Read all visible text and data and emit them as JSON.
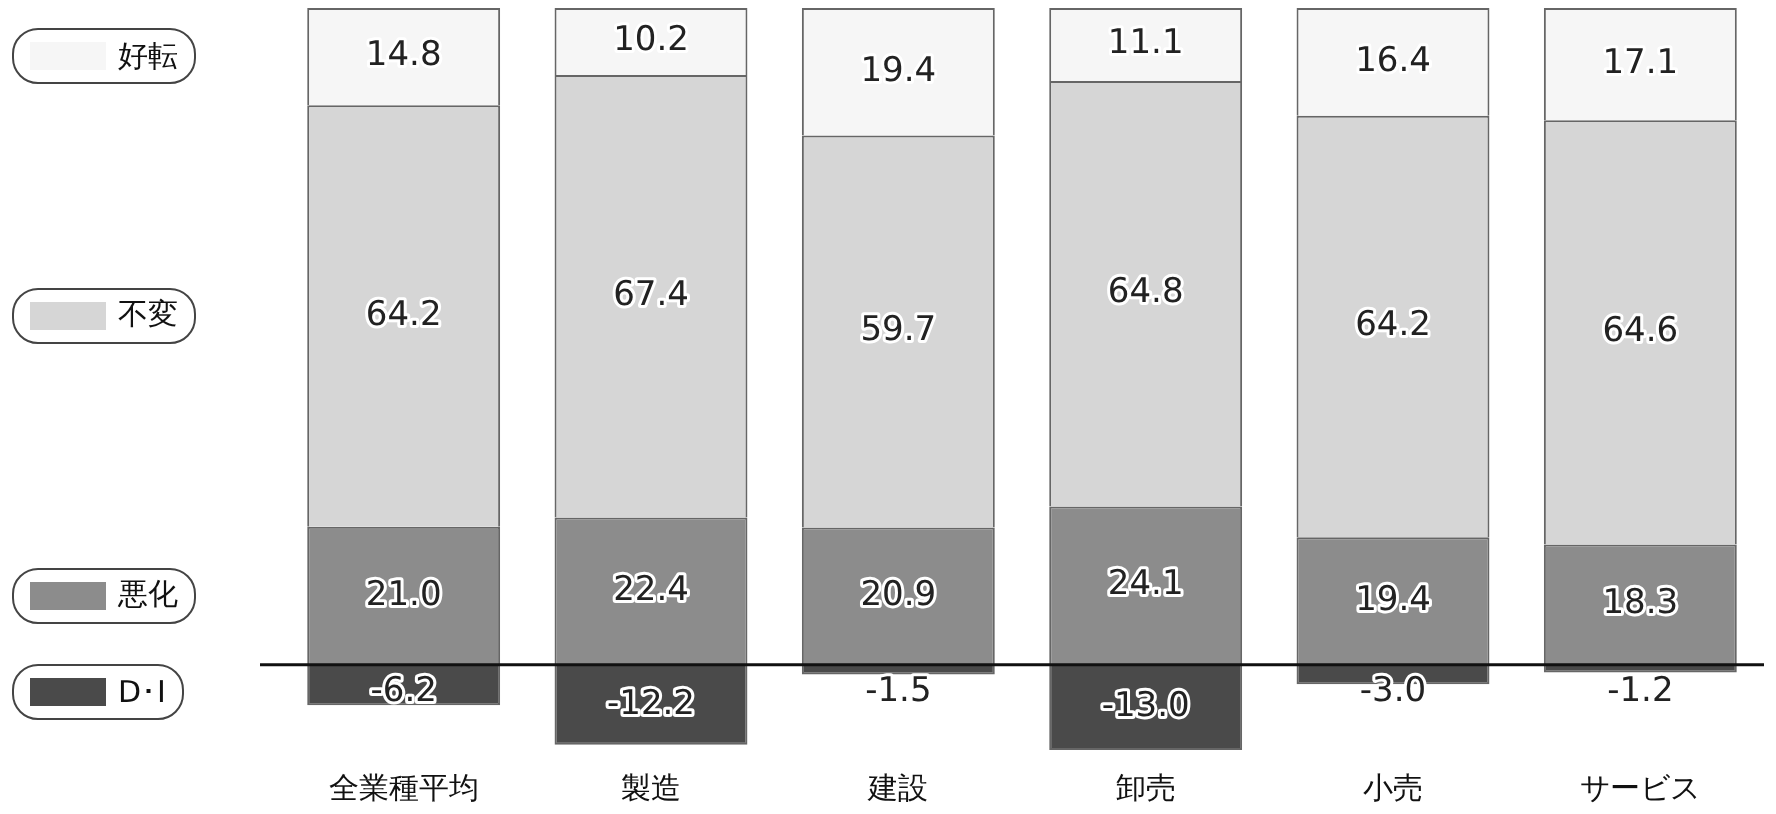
{
  "chart_data": {
    "type": "bar",
    "stacked": true,
    "categories": [
      "全業種平均",
      "製造",
      "建設",
      "卸売",
      "小売",
      "サービス"
    ],
    "series": [
      {
        "name": "悪化",
        "color": "#8c8c8c",
        "values": [
          21.0,
          22.4,
          20.9,
          24.1,
          19.4,
          18.3
        ],
        "value_labels": [
          "21.0",
          "22.4",
          "20.9",
          "24.1",
          "19.4",
          "18.3"
        ]
      },
      {
        "name": "不変",
        "color": "#d6d6d6",
        "values": [
          64.2,
          67.4,
          59.7,
          64.8,
          64.2,
          64.6
        ],
        "value_labels": [
          "64.2",
          "67.4",
          "59.7",
          "64.8",
          "64.2",
          "64.6"
        ]
      },
      {
        "name": "好転",
        "color": "#f6f6f6",
        "values": [
          14.8,
          10.2,
          19.4,
          11.1,
          16.4,
          17.1
        ],
        "value_labels": [
          "14.8",
          "10.2",
          "19.4",
          "11.1",
          "16.4",
          "17.1"
        ]
      },
      {
        "name": "D･I",
        "color": "#4a4a4a",
        "values": [
          -6.2,
          -12.2,
          -1.5,
          -13.0,
          -3.0,
          -1.2
        ],
        "value_labels": [
          "-6.2",
          "-12.2",
          "-1.5",
          "-13.0",
          "-3.0",
          "-1.2"
        ]
      }
    ],
    "ylim": [
      -13,
      100
    ],
    "legend": "left",
    "tick_labels": "x",
    "grid": false
  }
}
